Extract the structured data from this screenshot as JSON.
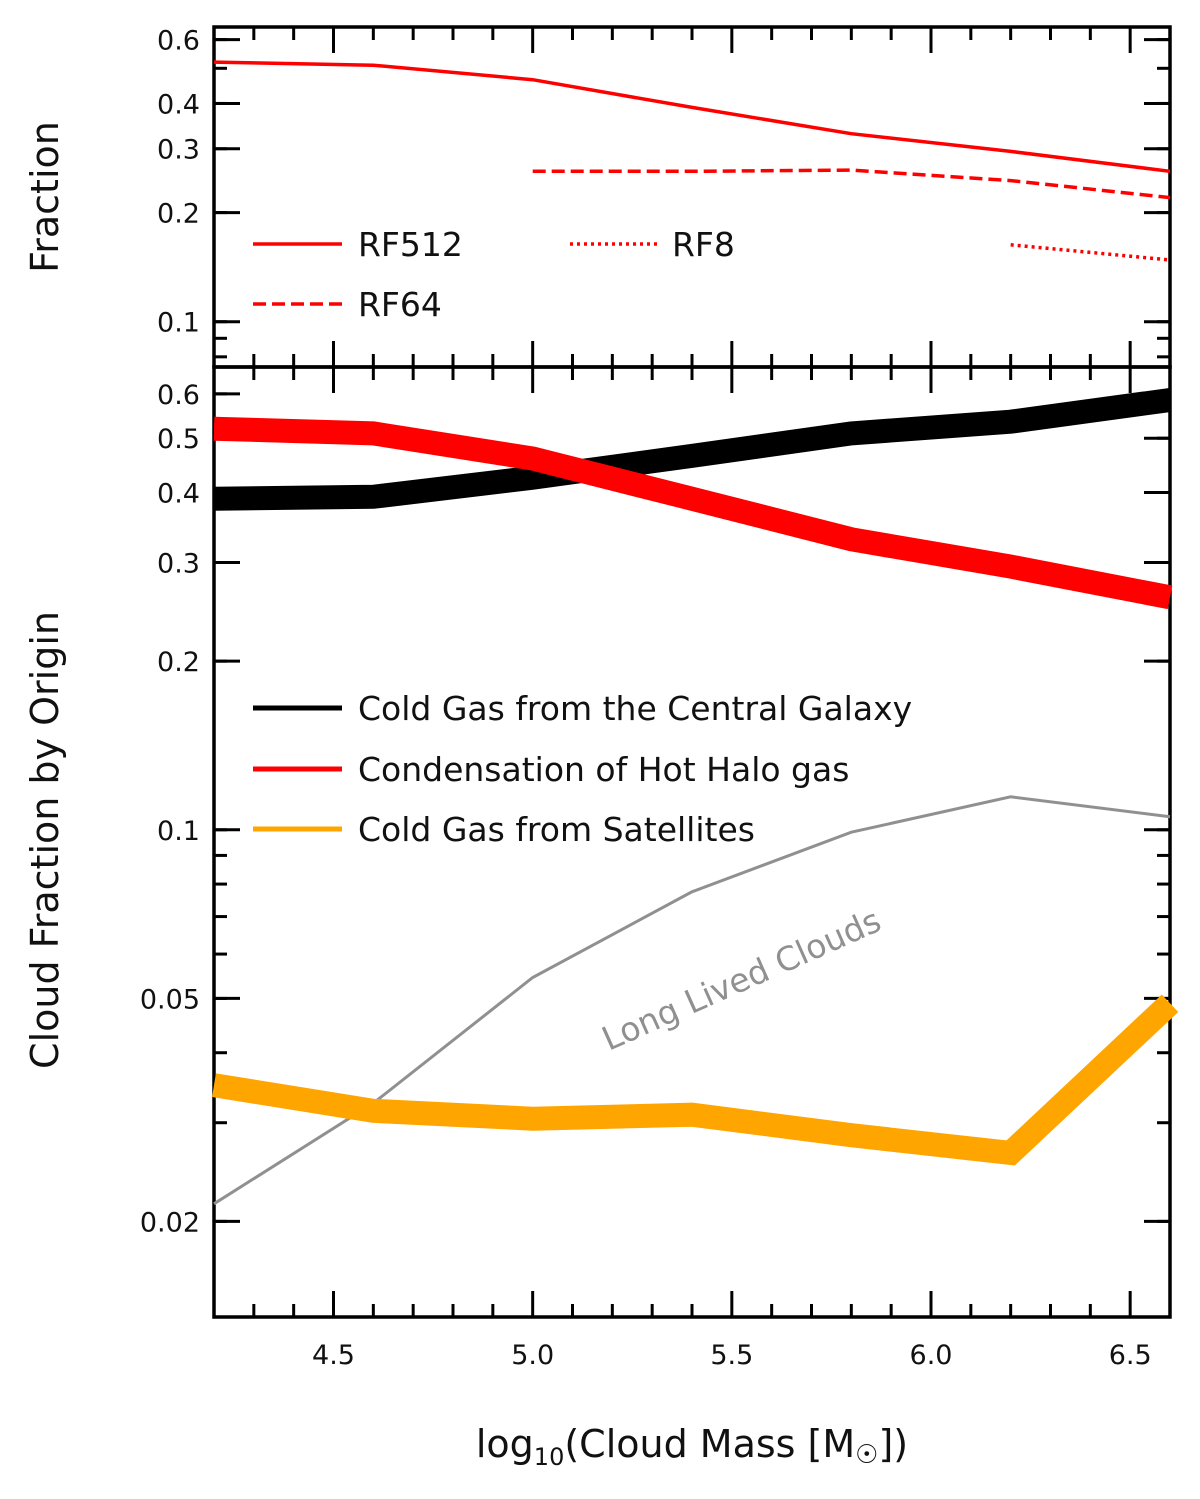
{
  "chart_data": [
    {
      "id": "top",
      "type": "line",
      "yscale": "log",
      "ylabel": "Fraction",
      "xlim": [
        4.2,
        6.6
      ],
      "ylim": [
        0.075,
        0.65
      ],
      "yticks": [
        {
          "value": 0.6,
          "label": "0.6"
        },
        {
          "value": 0.4,
          "label": "0.4"
        },
        {
          "value": 0.3,
          "label": "0.3"
        },
        {
          "value": 0.2,
          "label": "0.2"
        },
        {
          "value": 0.1,
          "label": "0.1"
        }
      ],
      "series": [
        {
          "name": "RF512",
          "color": "#ff0000",
          "style": "solid",
          "x": [
            4.2,
            4.6,
            5.0,
            5.4,
            5.8,
            6.2,
            6.6
          ],
          "values": [
            0.52,
            0.51,
            0.465,
            0.39,
            0.33,
            0.295,
            0.26
          ]
        },
        {
          "name": "RF64",
          "color": "#ff0000",
          "style": "dashed",
          "x": [
            5.0,
            5.4,
            5.8,
            6.2,
            6.6
          ],
          "values": [
            0.26,
            0.26,
            0.262,
            0.245,
            0.22
          ]
        },
        {
          "name": "RF8",
          "color": "#ff0000",
          "style": "dotted",
          "x": [
            6.2,
            6.6
          ],
          "values": [
            0.163,
            0.148
          ]
        }
      ]
    },
    {
      "id": "bottom",
      "type": "line",
      "yscale": "log",
      "ylabel": "Cloud Fraction by Origin",
      "xlabel_main": "log",
      "xlabel_sub": "10",
      "xlabel_rest": "(Cloud Mass [M",
      "xlabel_sun": "☉",
      "xlabel_end": "])",
      "xlim": [
        4.2,
        6.6
      ],
      "ylim": [
        0.0135,
        0.67
      ],
      "xticks": [
        {
          "value": 4.5,
          "label": "4.5"
        },
        {
          "value": 5.0,
          "label": "5.0"
        },
        {
          "value": 5.5,
          "label": "5.5"
        },
        {
          "value": 6.0,
          "label": "6.0"
        },
        {
          "value": 6.5,
          "label": "6.5"
        }
      ],
      "yticks": [
        {
          "value": 0.6,
          "label": "0.6"
        },
        {
          "value": 0.5,
          "label": "0.5"
        },
        {
          "value": 0.4,
          "label": "0.4"
        },
        {
          "value": 0.3,
          "label": "0.3"
        },
        {
          "value": 0.2,
          "label": "0.2"
        },
        {
          "value": 0.1,
          "label": "0.1"
        },
        {
          "value": 0.05,
          "label": "0.05"
        },
        {
          "value": 0.02,
          "label": "0.02"
        }
      ],
      "series": [
        {
          "name": "Cold Gas from the Central Galaxy",
          "color": "#000000",
          "style": "thick",
          "x": [
            4.2,
            4.6,
            5.0,
            5.4,
            5.8,
            6.2,
            6.6
          ],
          "values": [
            0.39,
            0.393,
            0.425,
            0.465,
            0.51,
            0.535,
            0.585
          ]
        },
        {
          "name": "Condensation of Hot Halo gas",
          "color": "#ff0000",
          "style": "thick",
          "x": [
            4.2,
            4.6,
            5.0,
            5.4,
            5.8,
            6.2,
            6.6
          ],
          "values": [
            0.52,
            0.51,
            0.46,
            0.39,
            0.33,
            0.295,
            0.26
          ]
        },
        {
          "name": "Cold Gas from Satellites",
          "color": "#ffa500",
          "style": "thick",
          "x": [
            4.2,
            4.6,
            5.0,
            5.4,
            5.8,
            6.2,
            6.6
          ],
          "values": [
            0.035,
            0.0315,
            0.0305,
            0.031,
            0.0285,
            0.0265,
            0.049
          ]
        },
        {
          "name": "Long Lived Clouds",
          "color": "#909090",
          "style": "thin",
          "x": [
            4.2,
            4.6,
            5.0,
            5.4,
            5.8,
            6.2,
            6.6
          ],
          "values": [
            0.0215,
            0.0325,
            0.0545,
            0.0775,
            0.099,
            0.1145,
            0.1055
          ]
        }
      ],
      "annotation": "Long Lived Clouds"
    }
  ]
}
